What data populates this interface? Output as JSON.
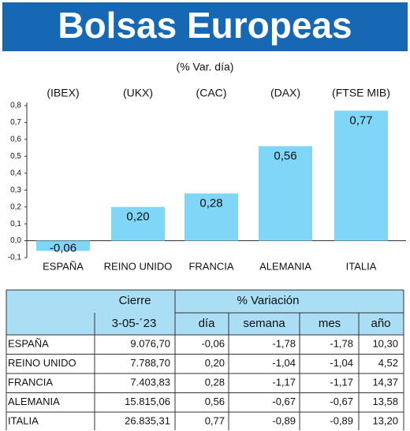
{
  "chart_data": {
    "type": "bar",
    "title": "Bolsas Europeas",
    "subtitle": "(% Var. día)",
    "tickers": [
      "(IBEX)",
      "(UKX)",
      "(CAC)",
      "(DAX)",
      "(FTSE MIB)"
    ],
    "categories": [
      "ESPAÑA",
      "REINO UNIDO",
      "FRANCIA",
      "ALEMANIA",
      "ITALIA"
    ],
    "values": [
      -0.06,
      0.2,
      0.28,
      0.56,
      0.77
    ],
    "value_labels": [
      "-0,06",
      "0,20",
      "0,28",
      "0,56",
      "0,77"
    ],
    "color": "#7fd6f7",
    "ylim": [
      -0.1,
      0.8
    ],
    "yticks": [
      {
        "value": -0.1,
        "label": "-0,1"
      },
      {
        "value": 0,
        "label": "0,0"
      },
      {
        "value": 0.1,
        "label": "0,1"
      },
      {
        "value": 0.2,
        "label": "0,2"
      },
      {
        "value": 0.3,
        "label": "0,3"
      },
      {
        "value": 0.4,
        "label": "0,4"
      },
      {
        "value": 0.5,
        "label": "0,5"
      },
      {
        "value": 0.6,
        "label": "0,6"
      },
      {
        "value": 0.7,
        "label": "0,7"
      },
      {
        "value": 0.8,
        "label": "0,8"
      }
    ]
  },
  "table": {
    "header1": [
      "Cierre",
      "% Variación"
    ],
    "header2": [
      "3-05-´23",
      "día",
      "semana",
      "mes",
      "año"
    ],
    "rows": [
      [
        "ESPAÑA",
        "9.076,70",
        "-0,06",
        "-1,78",
        "-1,78",
        "10,30"
      ],
      [
        "REINO UNIDO",
        "7.788,70",
        "0,20",
        "-1,04",
        "-1,04",
        "4,52"
      ],
      [
        "FRANCIA",
        "7.403,83",
        "0,28",
        "-1,17",
        "-1,17",
        "14,37"
      ],
      [
        "ALEMANIA",
        "15.815,06",
        "0,56",
        "-0,67",
        "-0,67",
        "13,58"
      ],
      [
        "ITALIA",
        "26.835,31",
        "0,77",
        "-0,89",
        "-0,89",
        "13,20"
      ]
    ]
  }
}
